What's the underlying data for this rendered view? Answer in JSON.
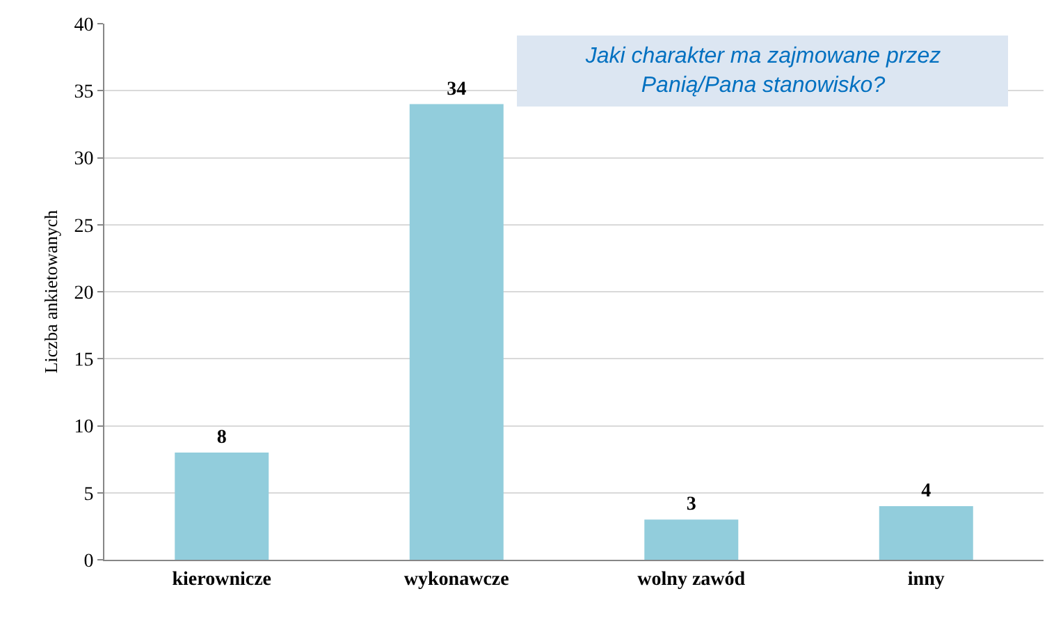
{
  "chart_data": {
    "type": "bar",
    "title": "Jaki charakter ma zajmowane przez\nPanią/Pana stanowisko?",
    "ylabel": "Liczba ankietowanych",
    "categories": [
      "kierownicze",
      "wykonawcze",
      "wolny zawód",
      "inny"
    ],
    "values": [
      8,
      34,
      3,
      4
    ],
    "color": "#92cddc",
    "ylim": [
      0,
      40
    ],
    "yticks": [
      0,
      5,
      10,
      15,
      20,
      25,
      30,
      35,
      40
    ],
    "grid": "y",
    "data_labels": true
  }
}
